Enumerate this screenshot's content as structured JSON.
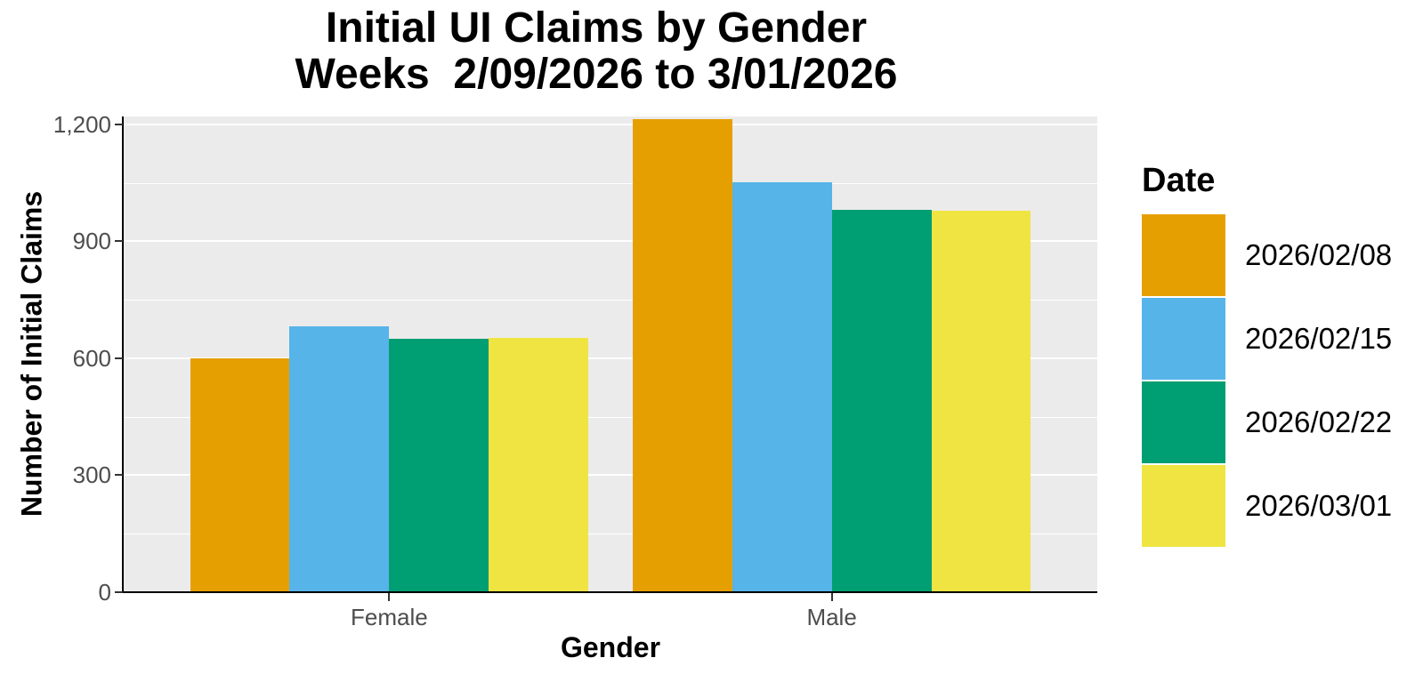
{
  "title": {
    "line1": "Initial UI Claims by Gender",
    "line2": "Weeks  2/09/2026 to 3/01/2026"
  },
  "legend": {
    "title": "Date",
    "entries": [
      {
        "label": "2026/02/08",
        "color": "#E69F00"
      },
      {
        "label": "2026/02/15",
        "color": "#56B4E9"
      },
      {
        "label": "2026/02/22",
        "color": "#009E73"
      },
      {
        "label": "2026/03/01",
        "color": "#F0E442"
      }
    ]
  },
  "chart_data": {
    "type": "bar",
    "grouping": "dodged",
    "title": "Initial UI Claims by Gender",
    "subtitle": "Weeks  2/09/2026 to 3/01/2026",
    "xlabel": "Gender",
    "ylabel": "Number of Initial Claims",
    "categories": [
      "Female",
      "Male"
    ],
    "series": [
      {
        "name": "2026/02/08",
        "color": "#E69F00",
        "values": [
          600,
          1214
        ]
      },
      {
        "name": "2026/02/15",
        "color": "#56B4E9",
        "values": [
          682,
          1052
        ]
      },
      {
        "name": "2026/02/22",
        "color": "#009E73",
        "values": [
          650,
          980
        ]
      },
      {
        "name": "2026/03/01",
        "color": "#F0E442",
        "values": [
          652,
          978
        ]
      }
    ],
    "ylim": [
      0,
      1220
    ],
    "y_major_ticks": [
      0,
      300,
      600,
      900,
      1200
    ],
    "y_tick_labels": [
      "0",
      "300",
      "600",
      "900",
      "1,200"
    ],
    "y_minor_ticks": [
      150,
      450,
      750,
      1050
    ],
    "grid": true,
    "legend_position": "right",
    "panel_background": "#EBEBEB",
    "gridline_color": "#FFFFFF",
    "axis_text_color": "#4D4D4D",
    "axis_line_color": "#000000"
  }
}
